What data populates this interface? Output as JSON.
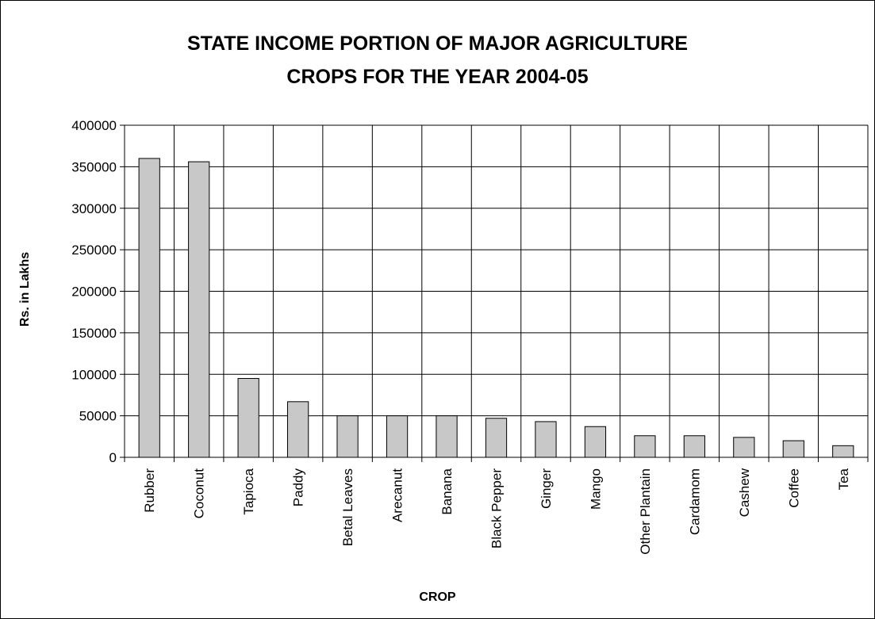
{
  "chart_data": {
    "type": "bar",
    "title_line1": "STATE INCOME PORTION OF MAJOR AGRICULTURE",
    "title_line2": "CROPS FOR THE YEAR 2004-05",
    "xlabel": "CROP",
    "ylabel": "Rs. in Lakhs",
    "ylim": [
      0,
      400000
    ],
    "yticks": [
      0,
      50000,
      100000,
      150000,
      200000,
      250000,
      300000,
      350000,
      400000
    ],
    "grid": true,
    "legend": "none",
    "categories": [
      "Rubber",
      "Coconut",
      "Tapioca",
      "Paddy",
      "Betal Leaves",
      "Arecanut",
      "Banana",
      "Black Pepper",
      "Ginger",
      "Mango",
      "Other Plantain",
      "Cardamom",
      "Cashew",
      "Coffee",
      "Tea"
    ],
    "values": [
      360000,
      356000,
      95000,
      67000,
      50000,
      50000,
      50000,
      47000,
      43000,
      37000,
      26000,
      26000,
      24000,
      20000,
      14000
    ],
    "bar_color": "#c8c8c8"
  }
}
